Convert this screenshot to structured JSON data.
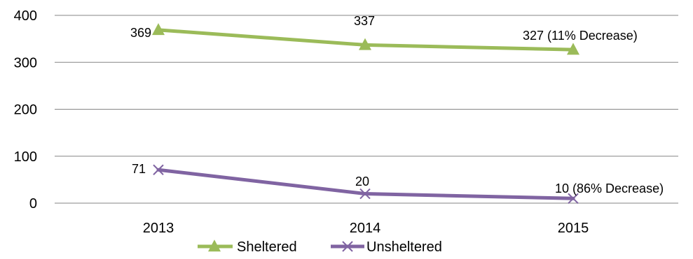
{
  "chart_data": {
    "type": "line",
    "categories": [
      "2013",
      "2014",
      "2015"
    ],
    "y_ticks": [
      0,
      100,
      200,
      300,
      400
    ],
    "ylim": [
      0,
      400
    ],
    "grid": true,
    "legend_position": "bottom",
    "series": [
      {
        "name": "Sheltered",
        "values": [
          369,
          337,
          327
        ],
        "color": "#9bbb59",
        "marker": "triangle",
        "data_labels": [
          "369",
          "337",
          "327 (11% Decrease)"
        ]
      },
      {
        "name": "Unsheltered",
        "values": [
          71,
          20,
          10
        ],
        "color": "#8064a2",
        "marker": "x",
        "data_labels": [
          "71",
          "20",
          "10 (86% Decrease)"
        ]
      }
    ]
  }
}
